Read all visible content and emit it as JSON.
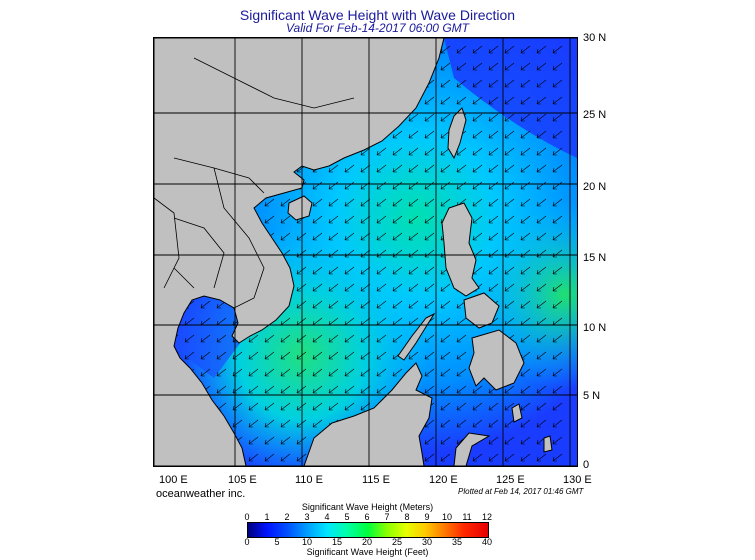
{
  "title": "Significant Wave Height with Wave Direction",
  "subtitle": "Valid For Feb-14-2017 06:00 GMT",
  "lat_labels": [
    "30 N",
    "25 N",
    "20 N",
    "15 N",
    "10 N",
    "5 N",
    "0"
  ],
  "lon_labels": [
    "100 E",
    "105 E",
    "110 E",
    "115 E",
    "120 E",
    "125 E",
    "130 E"
  ],
  "credit": "oceanweather inc.",
  "plotted_at": "Plotted at Feb 14, 2017 01:46 GMT",
  "colorbar": {
    "top_title": "Significant Wave Height (Meters)",
    "bottom_title": "Significant Wave Height (Feet)",
    "meters_ticks": [
      "0",
      "1",
      "2",
      "3",
      "4",
      "5",
      "6",
      "7",
      "8",
      "9",
      "10",
      "11",
      "12"
    ],
    "feet_ticks": [
      "0",
      "5",
      "10",
      "15",
      "20",
      "25",
      "30",
      "35",
      "40"
    ]
  },
  "map_extent": {
    "lon": [
      99,
      130
    ],
    "lat": [
      0,
      30
    ]
  },
  "colors": {
    "land": "#c0c0c0",
    "ocean_low": "#1a3cff",
    "ocean_mid": "#00c8ff",
    "ocean_high": "#20e070",
    "title": "#1a1a9c"
  },
  "wave_direction": "from northeast (arrows point southwest)"
}
